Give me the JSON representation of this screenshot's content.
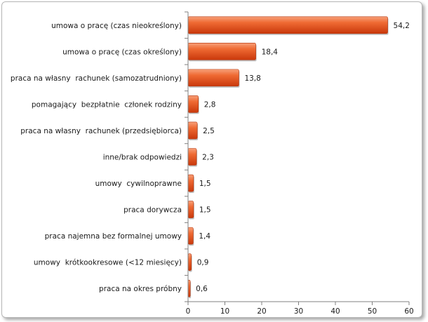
{
  "chart_data": {
    "type": "bar",
    "orientation": "horizontal",
    "categories": [
      "umowa o pracę (czas nieokreślony)",
      "umowa o pracę (czas określony)",
      "praca na własny  rachunek (samozatrudniony)",
      "pomagający  bezpłatnie  członek rodziny",
      "praca na własny  rachunek (przedsiębiorca)",
      "inne/brak odpowiedzi",
      "umowy  cywilnoprawne",
      "praca dorywcza",
      "praca najemna bez formalnej umowy",
      "umowy  krótkookresowe (<12 miesięcy)",
      "praca na okres próbny"
    ],
    "values": [
      54.2,
      18.4,
      13.8,
      2.8,
      2.5,
      2.3,
      1.5,
      1.5,
      1.4,
      0.9,
      0.6
    ],
    "value_labels": [
      "54,2",
      "18,4",
      "13,8",
      "2,8",
      "2,5",
      "2,3",
      "1,5",
      "1,5",
      "1,4",
      "0,9",
      "0,6"
    ],
    "xlim": [
      0,
      60
    ],
    "x_ticks": [
      0,
      10,
      20,
      30,
      40,
      50,
      60
    ],
    "grid": false,
    "legend": "none",
    "bar_color": "#e8501c",
    "title": "",
    "xlabel": "",
    "ylabel": ""
  }
}
